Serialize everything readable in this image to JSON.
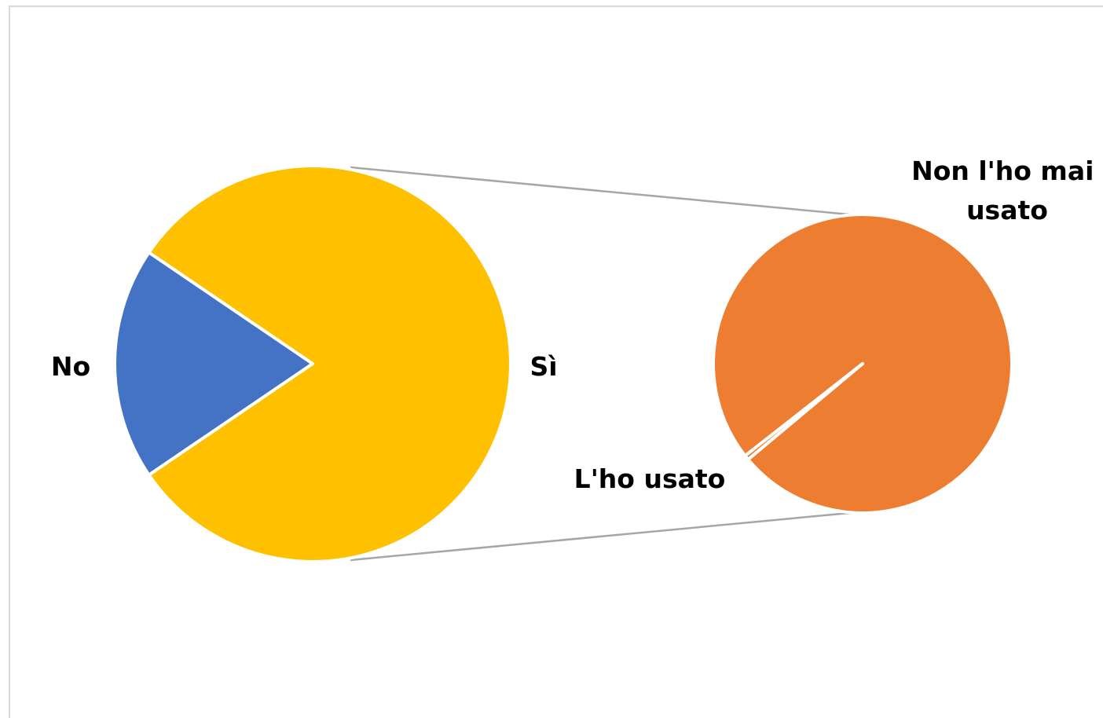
{
  "chart_data": {
    "type": "pie",
    "subtype": "pie-of-pie",
    "main_pie": {
      "slices": [
        {
          "label": "No",
          "value": 19.0,
          "color": "#4472C4"
        },
        {
          "label": "Sì",
          "value": 81.0,
          "color": "#FFC000"
        }
      ]
    },
    "secondary_pie": {
      "expands": "Sì",
      "slices": [
        {
          "label": "Non l'ho mai usato",
          "value": 99.5,
          "color": "#ED7D31"
        },
        {
          "label": "L'ho usato",
          "value": 0.5,
          "color": "#ED7D31"
        }
      ]
    },
    "legend": "none"
  }
}
